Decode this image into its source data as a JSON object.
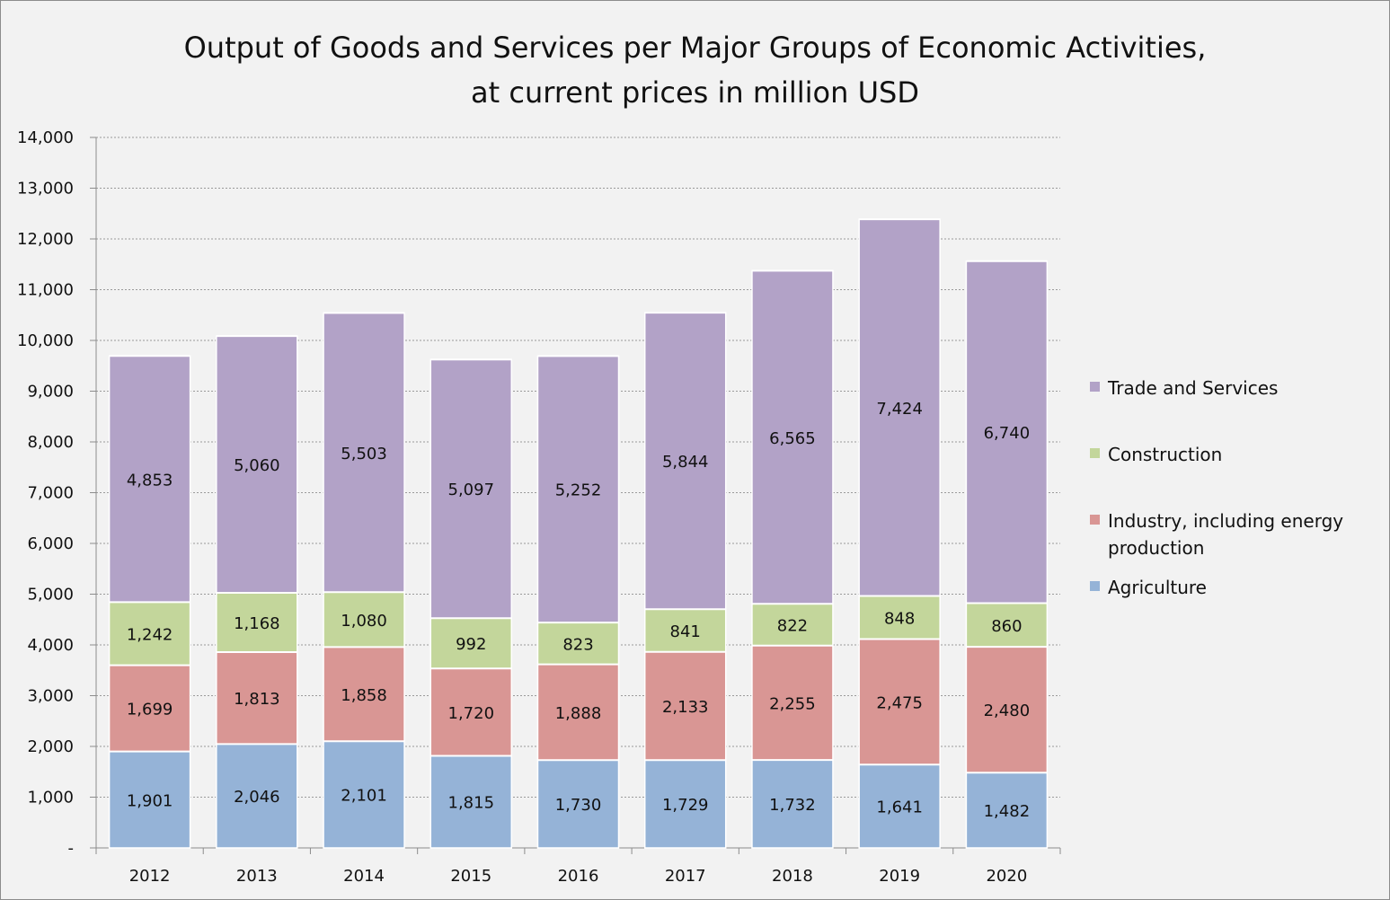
{
  "chart_data": {
    "type": "bar",
    "stacked": true,
    "title": "Output of Goods and Services per Major Groups of Economic Activities,",
    "subtitle": "at current prices in million USD",
    "categories": [
      "2012",
      "2013",
      "2014",
      "2015",
      "2016",
      "2017",
      "2018",
      "2019",
      "2020"
    ],
    "series": [
      {
        "name": "Agriculture",
        "color": "#95b3d7",
        "values": [
          1901,
          2046,
          2101,
          1815,
          1730,
          1729,
          1732,
          1641,
          1482
        ],
        "labels": [
          "1,901",
          "2,046",
          "2,101",
          "1,815",
          "1,730",
          "1,729",
          "1,732",
          "1,641",
          "1,482"
        ]
      },
      {
        "name": "Industry, including energy production",
        "color": "#d99694",
        "values": [
          1699,
          1813,
          1858,
          1720,
          1888,
          2133,
          2255,
          2475,
          2480
        ],
        "labels": [
          "1,699",
          "1,813",
          "1,858",
          "1,720",
          "1,888",
          "2,133",
          "2,255",
          "2,475",
          "2,480"
        ]
      },
      {
        "name": "Construction",
        "color": "#c3d69b",
        "values": [
          1242,
          1168,
          1080,
          992,
          823,
          841,
          822,
          848,
          860
        ],
        "labels": [
          "1,242",
          "1,168",
          "1,080",
          "992",
          "823",
          "841",
          "822",
          "848",
          "860"
        ]
      },
      {
        "name": "Trade and Services",
        "color": "#b2a2c7",
        "values": [
          4853,
          5060,
          5503,
          5097,
          5252,
          5844,
          6565,
          7424,
          6740
        ],
        "labels": [
          "4,853",
          "5,060",
          "5,503",
          "5,097",
          "5,252",
          "5,844",
          "6,565",
          "7,424",
          "6,740"
        ]
      }
    ],
    "legend": {
      "position": "right",
      "entries": [
        {
          "name_lines": [
            "Trade and Services"
          ],
          "color": "#b2a2c7"
        },
        {
          "name_lines": [
            "Construction"
          ],
          "color": "#c3d69b"
        },
        {
          "name_lines": [
            "Industry, including energy",
            "production"
          ],
          "color": "#d99694"
        },
        {
          "name_lines": [
            "Agriculture"
          ],
          "color": "#95b3d7"
        }
      ]
    },
    "ylim": [
      0,
      14000
    ],
    "yticks": [
      0,
      1000,
      2000,
      3000,
      4000,
      5000,
      6000,
      7000,
      8000,
      9000,
      10000,
      11000,
      12000,
      13000,
      14000
    ],
    "ytick_labels": [
      "-",
      "1,000",
      "2,000",
      "3,000",
      "4,000",
      "5,000",
      "6,000",
      "7,000",
      "8,000",
      "9,000",
      "10,000",
      "11,000",
      "12,000",
      "13,000",
      "14,000"
    ],
    "grid": true,
    "xlabel": "",
    "ylabel": ""
  }
}
